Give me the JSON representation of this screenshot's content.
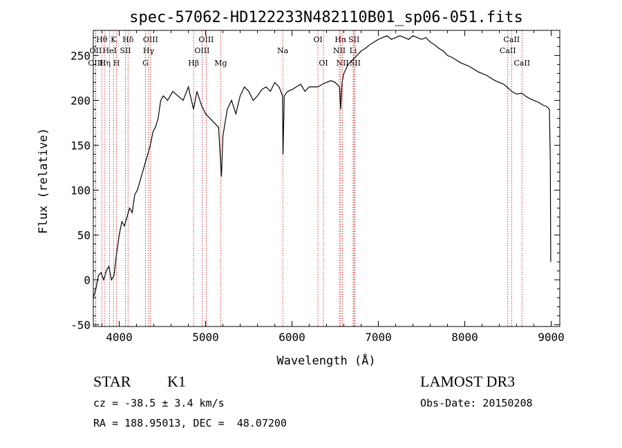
{
  "chart_data": {
    "type": "line",
    "title": "spec-57062-HD122233N482110B01_sp06-051.fits",
    "xlabel": "Wavelength (Å)",
    "ylabel": "Flux (relative)",
    "xlim": [
      3700,
      9100
    ],
    "ylim": [
      -52,
      278
    ],
    "x_ticks": [
      4000,
      5000,
      6000,
      7000,
      8000,
      9000
    ],
    "y_ticks": [
      -50,
      0,
      50,
      100,
      150,
      200,
      250
    ],
    "grid": false,
    "series": [
      {
        "x": [
          3700,
          3730,
          3760,
          3790,
          3820,
          3850,
          3880,
          3910,
          3940,
          3970,
          4000,
          4030,
          4060,
          4090,
          4120,
          4150,
          4180,
          4210,
          4240,
          4270,
          4300,
          4330,
          4360,
          4390,
          4420,
          4450,
          4480,
          4510,
          4560,
          4620,
          4680,
          4740,
          4800,
          4860,
          4900,
          4950,
          5000,
          5050,
          5100,
          5150,
          5183,
          5200,
          5250,
          5300,
          5350,
          5400,
          5450,
          5500,
          5550,
          5600,
          5650,
          5700,
          5750,
          5800,
          5850,
          5890,
          5896,
          5910,
          5950,
          6000,
          6050,
          6100,
          6150,
          6200,
          6250,
          6300,
          6350,
          6400,
          6450,
          6500,
          6550,
          6563,
          6580,
          6600,
          6650,
          6700,
          6750,
          6800,
          6850,
          6900,
          6950,
          7000,
          7050,
          7100,
          7150,
          7200,
          7250,
          7300,
          7350,
          7400,
          7450,
          7500,
          7550,
          7600,
          7650,
          7700,
          7750,
          7800,
          7850,
          7900,
          7950,
          8000,
          8050,
          8100,
          8150,
          8200,
          8250,
          8300,
          8350,
          8400,
          8450,
          8498,
          8542,
          8600,
          8662,
          8700,
          8750,
          8800,
          8850,
          8900,
          8950,
          8980,
          8990,
          8995
        ],
        "y": [
          -20,
          -10,
          5,
          8,
          0,
          10,
          15,
          0,
          5,
          30,
          50,
          65,
          60,
          70,
          80,
          75,
          95,
          100,
          110,
          120,
          130,
          140,
          150,
          165,
          170,
          180,
          200,
          205,
          200,
          210,
          205,
          200,
          215,
          190,
          210,
          195,
          185,
          180,
          175,
          170,
          115,
          160,
          190,
          200,
          185,
          205,
          215,
          210,
          200,
          205,
          212,
          215,
          210,
          220,
          215,
          205,
          140,
          205,
          210,
          212,
          215,
          218,
          210,
          215,
          215,
          215,
          218,
          220,
          222,
          220,
          215,
          190,
          220,
          230,
          240,
          245,
          250,
          255,
          258,
          262,
          265,
          268,
          270,
          272,
          268,
          270,
          272,
          270,
          268,
          272,
          270,
          268,
          270,
          265,
          262,
          258,
          255,
          250,
          248,
          245,
          242,
          240,
          238,
          235,
          232,
          230,
          228,
          225,
          222,
          220,
          218,
          214,
          210,
          207,
          208,
          205,
          202,
          200,
          198,
          195,
          193,
          190,
          130,
          20
        ]
      }
    ],
    "line_markers": [
      {
        "label": "Hθ",
        "x": 3798,
        "row": 1
      },
      {
        "label": "K",
        "x": 3934,
        "row": 1
      },
      {
        "label": "Hδ",
        "x": 4102,
        "row": 1
      },
      {
        "label": "OIII",
        "x": 4363,
        "row": 1
      },
      {
        "label": "OIII",
        "x": 5007,
        "row": 1
      },
      {
        "label": "OI",
        "x": 6300,
        "row": 1
      },
      {
        "label": "Hα",
        "x": 6563,
        "row": 1
      },
      {
        "label": "SII",
        "x": 6717,
        "row": 1
      },
      {
        "label": "CaII",
        "x": 8542,
        "row": 1
      },
      {
        "label": "OII",
        "x": 3727,
        "row": 2
      },
      {
        "label": "HeI",
        "x": 3889,
        "row": 2
      },
      {
        "label": "SII",
        "x": 4072,
        "row": 2
      },
      {
        "label": "Hγ",
        "x": 4340,
        "row": 2
      },
      {
        "label": "OIII",
        "x": 4959,
        "row": 2
      },
      {
        "label": "Na",
        "x": 5893,
        "row": 2
      },
      {
        "label": "NII",
        "x": 6548,
        "row": 2
      },
      {
        "label": "Li",
        "x": 6708,
        "row": 2
      },
      {
        "label": "CaII",
        "x": 8498,
        "row": 2
      },
      {
        "label": "OIII",
        "x": 3727,
        "row": 3
      },
      {
        "label": "Hη",
        "x": 3835,
        "row": 3
      },
      {
        "label": "H",
        "x": 3968,
        "row": 3
      },
      {
        "label": "G",
        "x": 4304,
        "row": 3
      },
      {
        "label": "Hβ",
        "x": 4861,
        "row": 3
      },
      {
        "label": "Mg",
        "x": 5175,
        "row": 3
      },
      {
        "label": "OI",
        "x": 6364,
        "row": 3
      },
      {
        "label": "NII",
        "x": 6584,
        "row": 3
      },
      {
        "label": "SII",
        "x": 6731,
        "row": 3
      },
      {
        "label": "CaII",
        "x": 8662,
        "row": 3
      }
    ]
  },
  "info": {
    "class_label": "STAR",
    "subclass": "K1",
    "survey": "LAMOST DR3",
    "cz": "cz = -38.5 ± 3.4 km/s",
    "obs_date": "Obs-Date: 20150208",
    "coords": "RA = 188.95013, DEC =  48.07200"
  },
  "colors": {
    "spectrum": "#000000",
    "line_marker": "#cc0000",
    "axis": "#000000"
  }
}
